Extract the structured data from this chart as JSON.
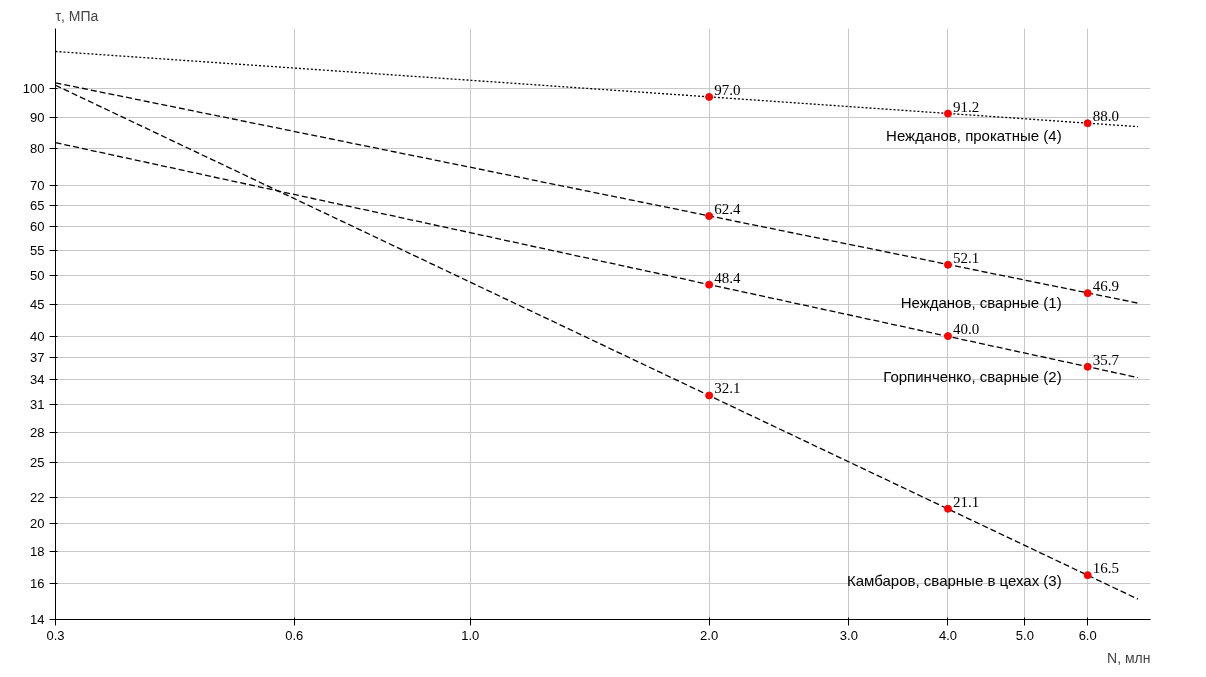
{
  "chart_data": {
    "type": "line",
    "xlabel": "N, млн",
    "ylabel": "τ, МПа",
    "log": "xy",
    "grid": true,
    "marker": "none",
    "xlim": [
      0.3,
      7.2
    ],
    "ylim": [
      14,
      125
    ],
    "xticks": [
      0.3,
      0.6,
      {
        "value": 1,
        "label": "1.0"
      },
      {
        "value": 2,
        "label": "2.0"
      },
      {
        "value": 3,
        "label": "3.0"
      },
      {
        "value": 4,
        "label": "4.0"
      },
      {
        "value": 5,
        "label": "5.0"
      },
      {
        "value": 6,
        "label": "6.0"
      }
    ],
    "yticks": [
      14,
      16,
      18,
      20,
      22,
      25,
      28,
      31,
      34,
      37,
      40,
      45,
      50,
      55,
      60,
      65,
      70,
      80,
      90,
      100
    ],
    "series": [
      {
        "name": "Нежданов, прокатные (4)",
        "x": [
          0.3,
          6.94
        ],
        "values": [
          114.8,
          86.9
        ],
        "color": "#000000",
        "line_style": "dotted"
      },
      {
        "name": "Нежданов, сварные (1)",
        "x": [
          0.3,
          6.94
        ],
        "values": [
          102.2,
          45.2
        ],
        "color": "#000000",
        "line_style": "dashed"
      },
      {
        "name": "Горпинченко, сварные (2)",
        "x": [
          0.3,
          6.94
        ],
        "values": [
          81.9,
          34.3
        ],
        "color": "#000000",
        "line_style": "dashed"
      },
      {
        "name": "Камбаров, сварные в цехах (3)",
        "x": [
          0.3,
          6.94
        ],
        "values": [
          101.3,
          15.1
        ],
        "color": "#000000",
        "line_style": "dashed"
      },
      {
        "type": "scatter",
        "marker": "circle",
        "x": [
          2,
          4,
          6
        ],
        "values": [
          97.0,
          91.2,
          88.0
        ],
        "value_labels": [
          "97.0",
          "91.2",
          "88.0"
        ],
        "color": "#ff0000"
      },
      {
        "type": "scatter",
        "marker": "circle",
        "x": [
          2,
          4,
          6
        ],
        "values": [
          62.4,
          52.1,
          46.9
        ],
        "value_labels": [
          "62.4",
          "52.1",
          "46.9"
        ],
        "color": "#ff0000"
      },
      {
        "type": "scatter",
        "marker": "circle",
        "x": [
          2,
          4,
          6
        ],
        "values": [
          48.4,
          40.0,
          35.7
        ],
        "value_labels": [
          "48.4",
          "40.0",
          "35.7"
        ],
        "color": "#ff0000"
      },
      {
        "type": "scatter",
        "marker": "circle",
        "x": [
          2,
          4,
          6
        ],
        "values": [
          32.1,
          21.1,
          16.5
        ],
        "value_labels": [
          "32.1",
          "21.1",
          "16.5"
        ],
        "color": "#ff0000"
      }
    ]
  }
}
